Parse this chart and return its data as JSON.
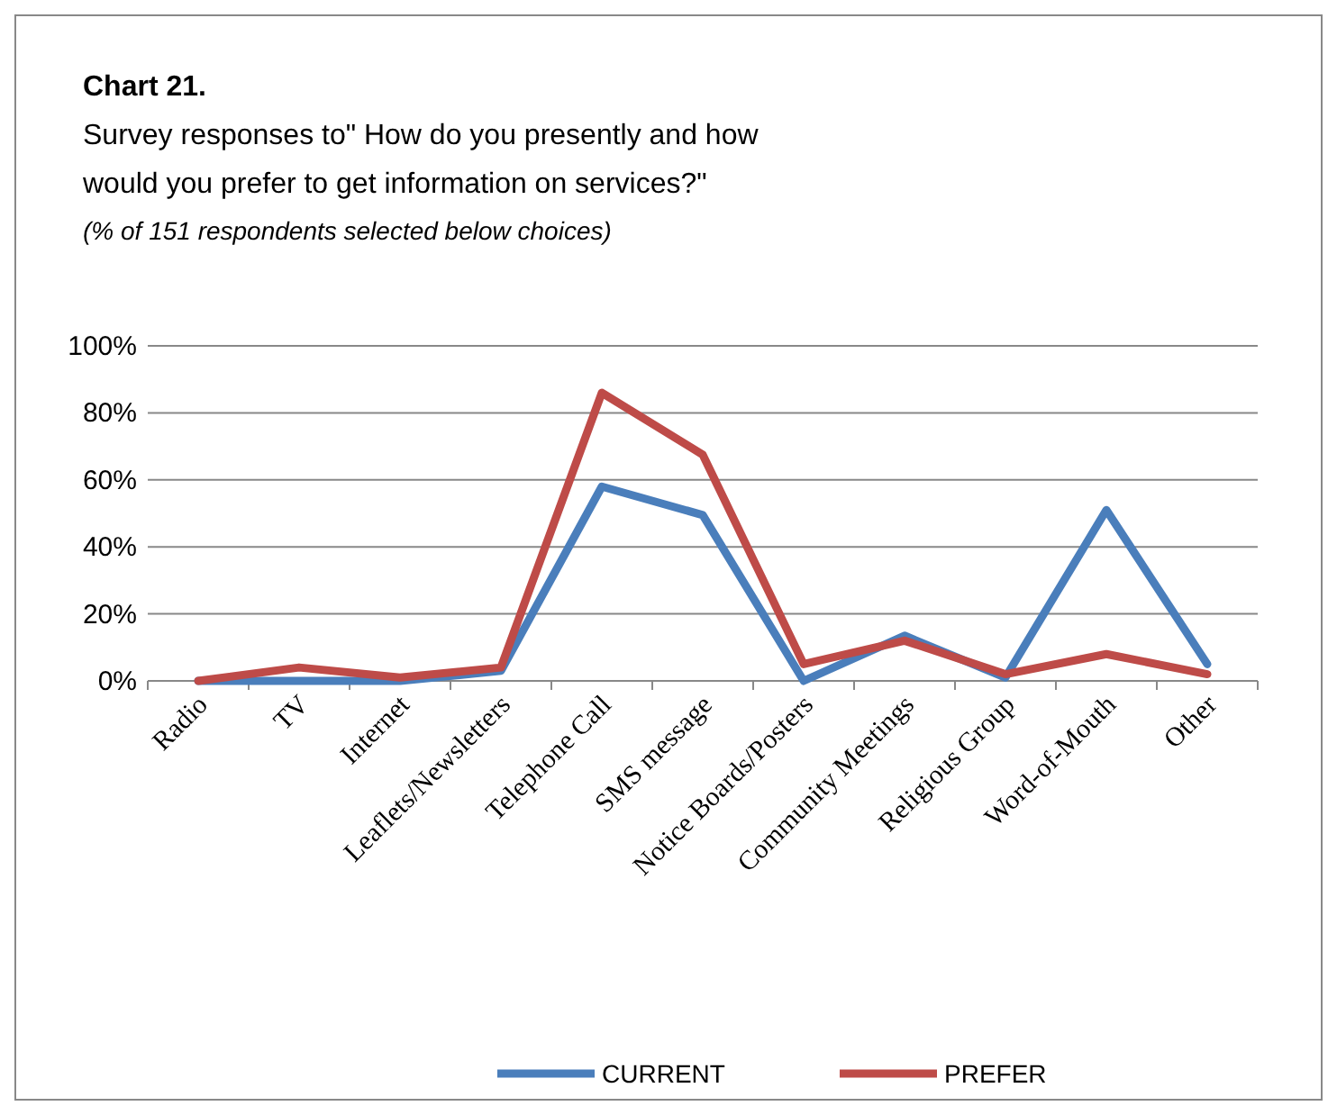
{
  "chart_data": {
    "type": "line",
    "title": "Chart 21.",
    "subtitle": "Survey responses to\" How do you presently and how would you prefer to get information on services?\"",
    "annotations": [
      "(% of 151 respondents selected below choices)"
    ],
    "categories": [
      "Radio",
      "TV",
      "Internet",
      "Leaflets/Newsletters",
      "Telephone Call",
      "SMS message",
      "Notice Boards/Posters",
      "Community Meetings",
      "Religious Group",
      "Word-of-Mouth",
      "Other"
    ],
    "series": [
      {
        "name": "CURRENT",
        "color": "#4a7ebb",
        "values": [
          0,
          0,
          0,
          3,
          58,
          49.5,
          0,
          13.5,
          1,
          51,
          5
        ]
      },
      {
        "name": "PREFER",
        "color": "#be4b48",
        "values": [
          0,
          4,
          1,
          4,
          86,
          67.5,
          5,
          12,
          2,
          8,
          2
        ]
      }
    ],
    "ylim": [
      0,
      100
    ],
    "yticks": [
      {
        "value": 0,
        "label": "0%"
      },
      {
        "value": 20,
        "label": "20%"
      },
      {
        "value": 40,
        "label": "40%"
      },
      {
        "value": 60,
        "label": "60%"
      },
      {
        "value": 80,
        "label": "80%"
      },
      {
        "value": 100,
        "label": "100%"
      }
    ],
    "grid": "y",
    "legend": "bottom",
    "marker": "none",
    "line_style": "solid"
  }
}
